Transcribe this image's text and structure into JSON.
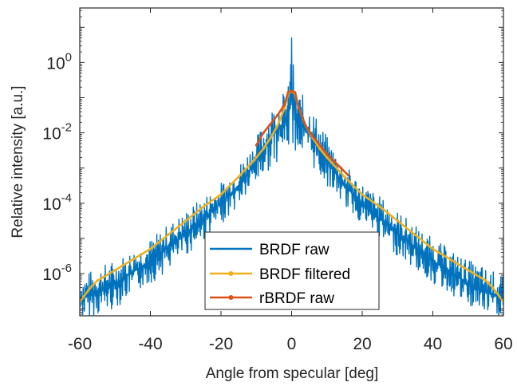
{
  "chart_data": {
    "type": "line",
    "xlabel": "Angle from specular [deg]",
    "ylabel": "Relative intensity [a.u.]",
    "xlim": [
      -60,
      60
    ],
    "ylim_log10": [
      -7.2,
      1.55
    ],
    "yscale": "log",
    "grid": false,
    "legend_position": "bottom-center",
    "x_ticks": [
      -60,
      -40,
      -20,
      0,
      20,
      40,
      60
    ],
    "x_tick_labels": [
      "-60",
      "-40",
      "-20",
      "0",
      "20",
      "40",
      "60"
    ],
    "y_ticks_log10": [
      0,
      -2,
      -4,
      -6
    ],
    "y_tick_labels": [
      {
        "base": "10",
        "exp": "0"
      },
      {
        "base": "10",
        "exp": "-2"
      },
      {
        "base": "10",
        "exp": "-4"
      },
      {
        "base": "10",
        "exp": "-6"
      }
    ],
    "series": [
      {
        "name": "BRDF raw",
        "color": "#0072BD",
        "marker": "none",
        "envelope_log10": {
          "x": [
            -60,
            -55,
            -50,
            -45,
            -40,
            -35,
            -30,
            -25,
            -20,
            -15,
            -10,
            -8,
            -6,
            -4,
            -2,
            -1,
            0,
            1,
            2,
            4,
            6,
            8,
            10,
            15,
            20,
            25,
            30,
            35,
            40,
            45,
            50,
            55,
            60
          ],
          "upper": [
            -6.1,
            -5.8,
            -5.6,
            -5.3,
            -5.0,
            -4.6,
            -4.2,
            -3.8,
            -3.4,
            -2.9,
            -2.1,
            -1.7,
            -1.3,
            -1.0,
            -0.8,
            -0.7,
            0.7,
            -0.7,
            -0.8,
            -1.0,
            -1.3,
            -1.7,
            -2.1,
            -2.9,
            -3.4,
            -3.8,
            -4.2,
            -4.6,
            -5.0,
            -5.3,
            -5.6,
            -5.8,
            -6.1
          ],
          "lower": [
            -7.3,
            -7.2,
            -7.0,
            -6.6,
            -6.3,
            -5.9,
            -5.5,
            -5.1,
            -4.6,
            -4.1,
            -3.5,
            -3.3,
            -3.0,
            -2.8,
            -2.6,
            -2.5,
            -2.4,
            -2.5,
            -2.6,
            -2.8,
            -3.0,
            -3.3,
            -3.5,
            -4.1,
            -4.6,
            -5.1,
            -5.5,
            -5.9,
            -6.3,
            -6.6,
            -7.0,
            -7.2,
            -7.3
          ]
        }
      },
      {
        "name": "BRDF filtered",
        "color": "#EDB120",
        "marker": "dot",
        "x": [
          -60,
          -57,
          -55,
          -50,
          -45,
          -40,
          -35,
          -30,
          -25,
          -20,
          -15,
          -10,
          -8,
          -6,
          -4,
          -2,
          -1,
          0,
          1,
          2,
          4,
          6,
          8,
          10,
          15,
          20,
          25,
          30,
          35,
          40,
          45,
          50,
          55,
          57,
          60
        ],
        "y_log10": [
          -6.8,
          -6.4,
          -6.2,
          -5.9,
          -5.6,
          -5.3,
          -4.9,
          -4.5,
          -4.1,
          -3.75,
          -3.25,
          -2.7,
          -2.45,
          -2.15,
          -1.8,
          -1.3,
          -0.9,
          -0.8,
          -0.9,
          -1.3,
          -1.8,
          -2.15,
          -2.45,
          -2.7,
          -3.25,
          -3.75,
          -4.1,
          -4.5,
          -4.9,
          -5.3,
          -5.6,
          -5.9,
          -6.2,
          -6.4,
          -6.8
        ]
      },
      {
        "name": "rBRDF raw",
        "color": "#D95319",
        "marker": "dot",
        "x": [
          -10,
          -8,
          -6,
          -4,
          -2,
          -1,
          0,
          1,
          2,
          4,
          6,
          8,
          10,
          12,
          14,
          16
        ],
        "y_log10": [
          -2.35,
          -2.0,
          -1.75,
          -1.5,
          -1.2,
          -0.85,
          -0.8,
          -0.85,
          -1.3,
          -1.8,
          -2.1,
          -2.35,
          -2.6,
          -2.8,
          -3.0,
          -3.2
        ]
      }
    ]
  }
}
